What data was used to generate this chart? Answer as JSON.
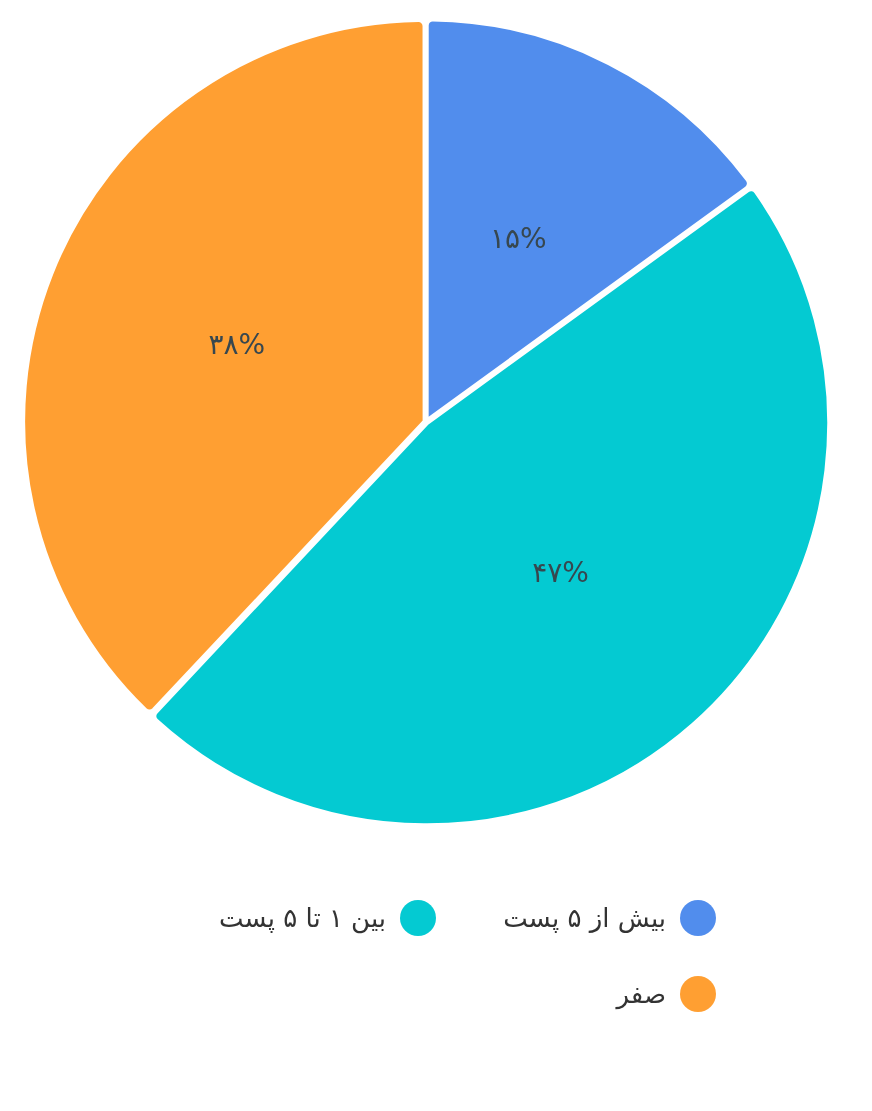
{
  "chart_data": {
    "type": "pie",
    "categories": [
      "بیش از ۵ پست",
      "بین ۱ تا ۵ پست",
      "صفر"
    ],
    "values": [
      15,
      47,
      38
    ],
    "colors": [
      "#518ded",
      "#04cad2",
      "#ff9f32"
    ],
    "value_labels": [
      "۱۵%",
      "۴۷%",
      "۳۸%"
    ],
    "legend": "bottom"
  }
}
